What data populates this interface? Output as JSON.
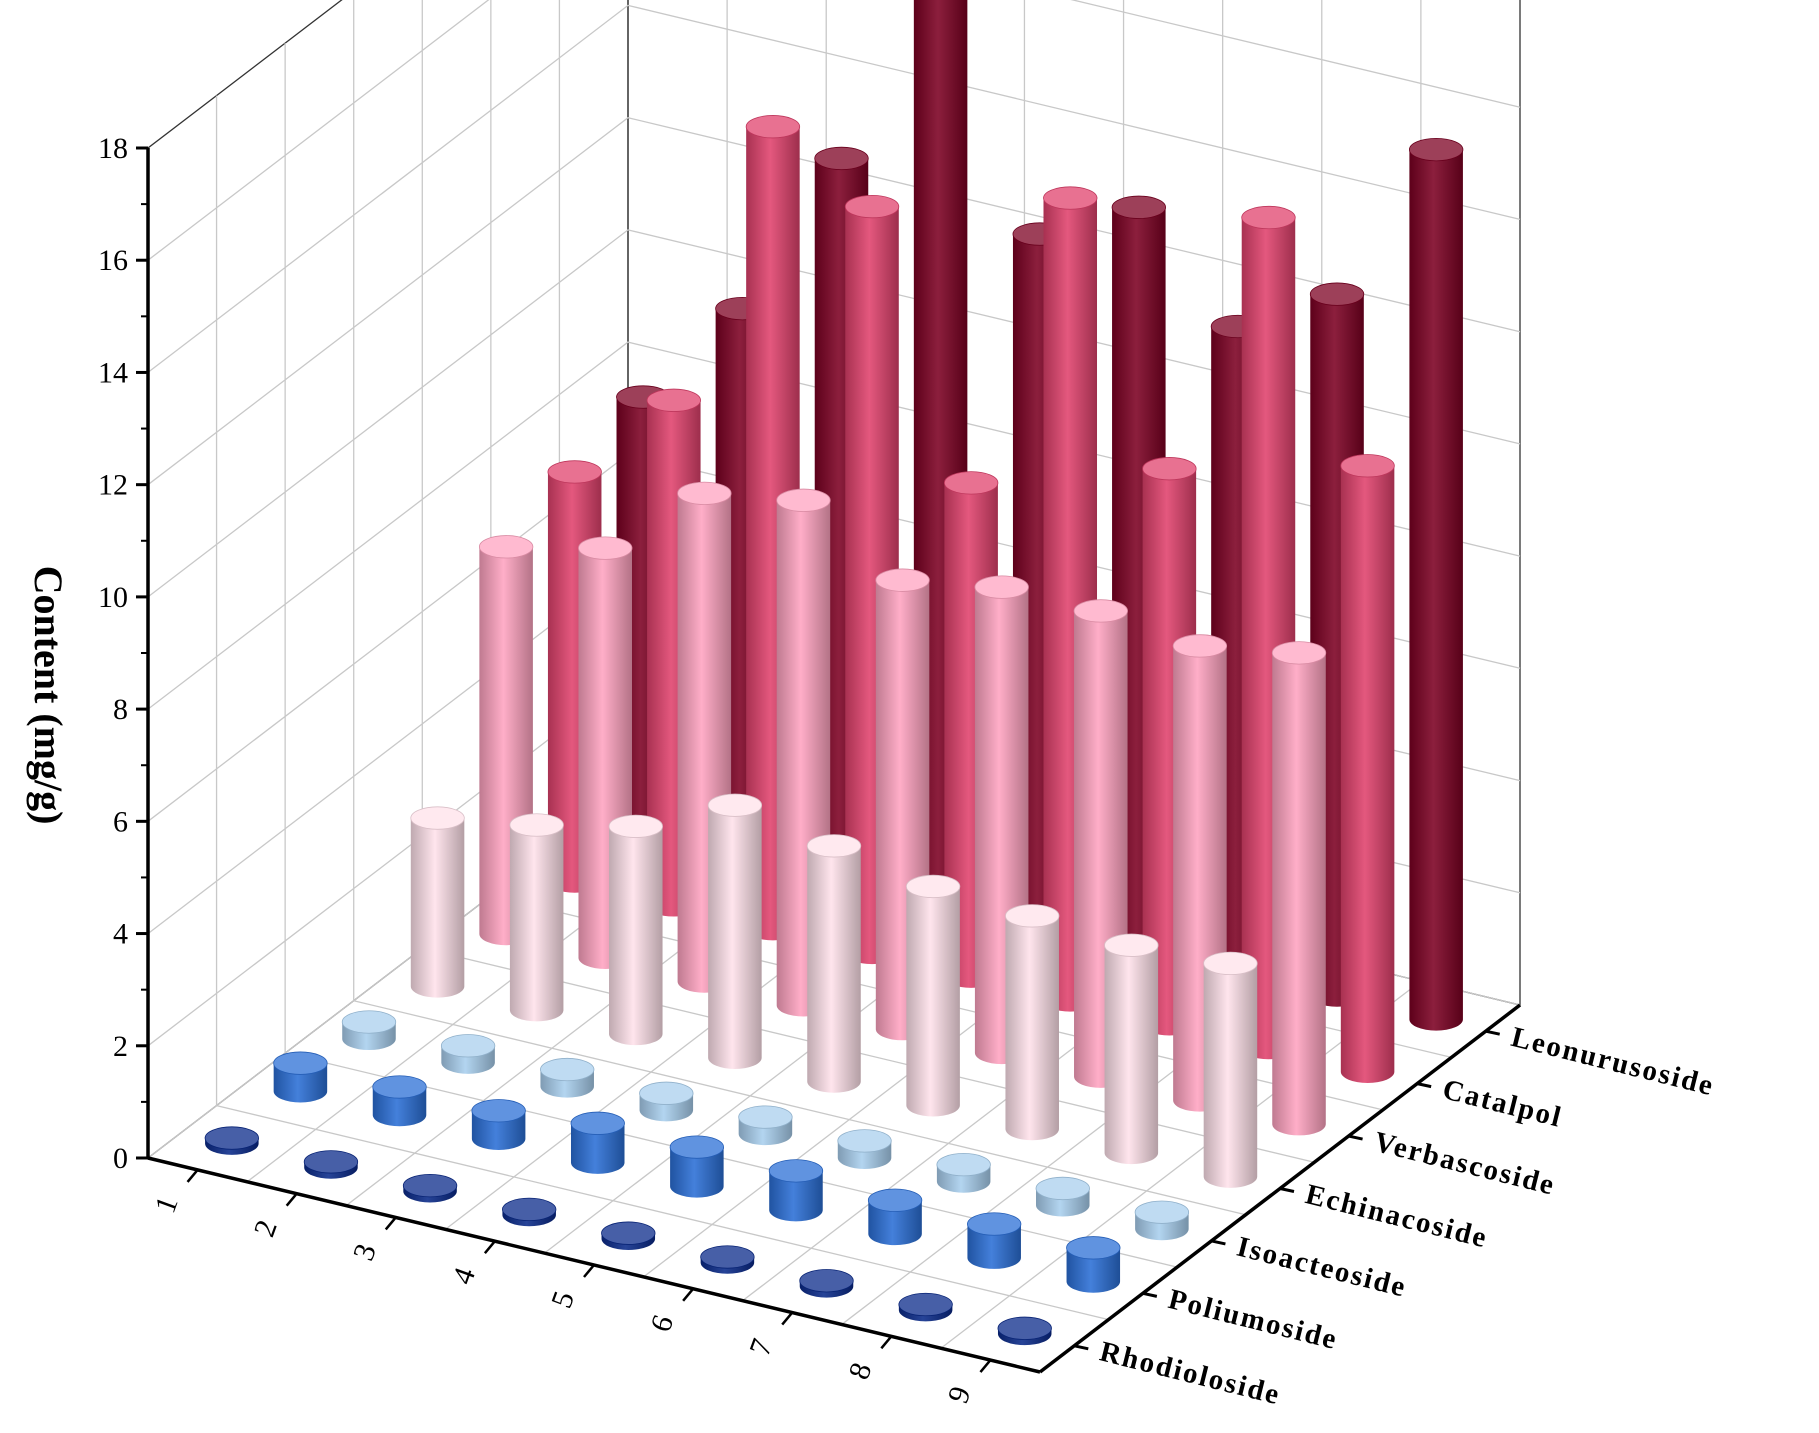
{
  "chart_data": {
    "type": "bar3d",
    "title": "",
    "xlabel": "",
    "ylabel": "",
    "zlabel": "Content (mg/g)",
    "zlim": [
      0,
      18
    ],
    "z_ticks": [
      0,
      2,
      4,
      6,
      8,
      10,
      12,
      14,
      16,
      18
    ],
    "grid": true,
    "x_categories": [
      "1",
      "2",
      "3",
      "4",
      "5",
      "6",
      "7",
      "8",
      "9"
    ],
    "series": [
      {
        "name": "Rhodioloside",
        "color": "#0a2a8a",
        "values": [
          0.1,
          0.1,
          0.1,
          0.1,
          0.1,
          0.1,
          0.1,
          0.1,
          0.1
        ]
      },
      {
        "name": "Poliumoside",
        "color": "#2b6fd6",
        "values": [
          0.5,
          0.5,
          0.5,
          0.7,
          0.7,
          0.7,
          0.6,
          0.6,
          0.6
        ]
      },
      {
        "name": "Isoacteoside",
        "color": "#a9cfee",
        "values": [
          0.3,
          0.3,
          0.3,
          0.3,
          0.3,
          0.3,
          0.3,
          0.3,
          0.3
        ]
      },
      {
        "name": "Echinacoside",
        "color": "#ffe1ea",
        "values": [
          3.0,
          3.3,
          3.7,
          4.5,
          4.2,
          3.9,
          3.8,
          3.7,
          3.8
        ]
      },
      {
        "name": "Verbascoside",
        "color": "#ffa3c0",
        "values": [
          6.9,
          7.3,
          8.7,
          9.0,
          8.0,
          8.3,
          8.3,
          8.1,
          8.4
        ]
      },
      {
        "name": "Catalpol",
        "color": "#e0416c",
        "values": [
          7.3,
          9.0,
          14.3,
          13.3,
          8.8,
          14.3,
          9.9,
          14.8,
          10.8
        ]
      },
      {
        "name": "Leonurusoside",
        "color": "#7c0022",
        "values": [
          7.7,
          9.7,
          12.8,
          17.0,
          12.3,
          13.2,
          11.5,
          12.5,
          15.5
        ]
      }
    ]
  }
}
